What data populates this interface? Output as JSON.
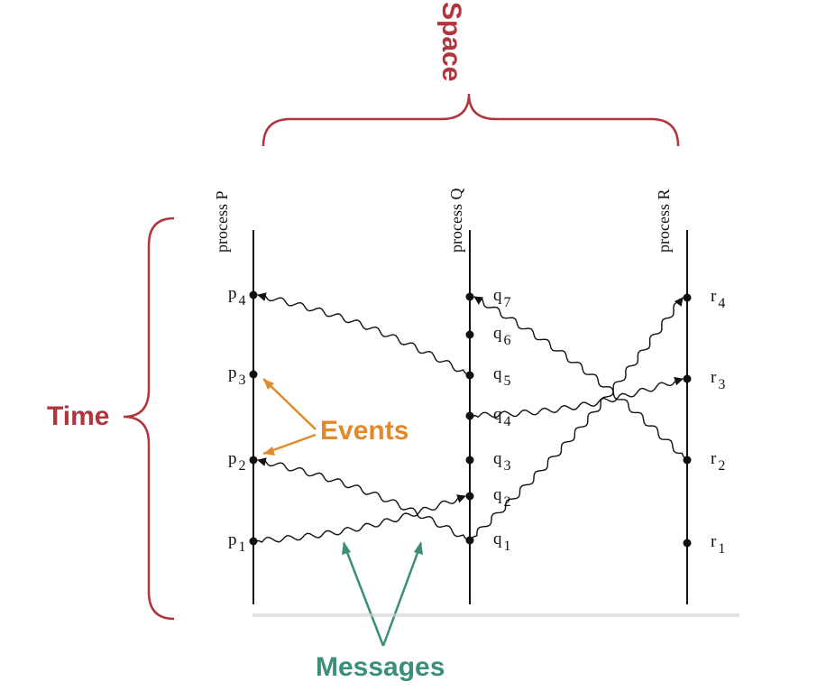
{
  "labels": {
    "space": "Space",
    "time": "Time",
    "events": "Events",
    "messages": "Messages"
  },
  "colors": {
    "brace": "#b0353d",
    "events": "#e08a2b",
    "messages": "#3a8f7a",
    "ink": "#111111"
  },
  "processes": [
    {
      "id": "P",
      "label": "process P"
    },
    {
      "id": "Q",
      "label": "process Q"
    },
    {
      "id": "R",
      "label": "process R"
    }
  ],
  "events": {
    "P": [
      {
        "base": "p",
        "sub": "1"
      },
      {
        "base": "p",
        "sub": "2"
      },
      {
        "base": "p",
        "sub": "3"
      },
      {
        "base": "p",
        "sub": "4"
      }
    ],
    "Q": [
      {
        "base": "q",
        "sub": "1"
      },
      {
        "base": "q",
        "sub": "2"
      },
      {
        "base": "q",
        "sub": "3"
      },
      {
        "base": "q",
        "sub": "4"
      },
      {
        "base": "q",
        "sub": "5"
      },
      {
        "base": "q",
        "sub": "6"
      },
      {
        "base": "q",
        "sub": "7"
      }
    ],
    "R": [
      {
        "base": "r",
        "sub": "1"
      },
      {
        "base": "r",
        "sub": "2"
      },
      {
        "base": "r",
        "sub": "3"
      },
      {
        "base": "r",
        "sub": "4"
      }
    ]
  },
  "messages": [
    {
      "from": "p1",
      "to": "q2"
    },
    {
      "from": "q1",
      "to": "p2"
    },
    {
      "from": "q1",
      "to": "r4"
    },
    {
      "from": "q4",
      "to": "r3"
    },
    {
      "from": "q5",
      "to": "p4"
    },
    {
      "from": "r2",
      "to": "q7"
    }
  ]
}
